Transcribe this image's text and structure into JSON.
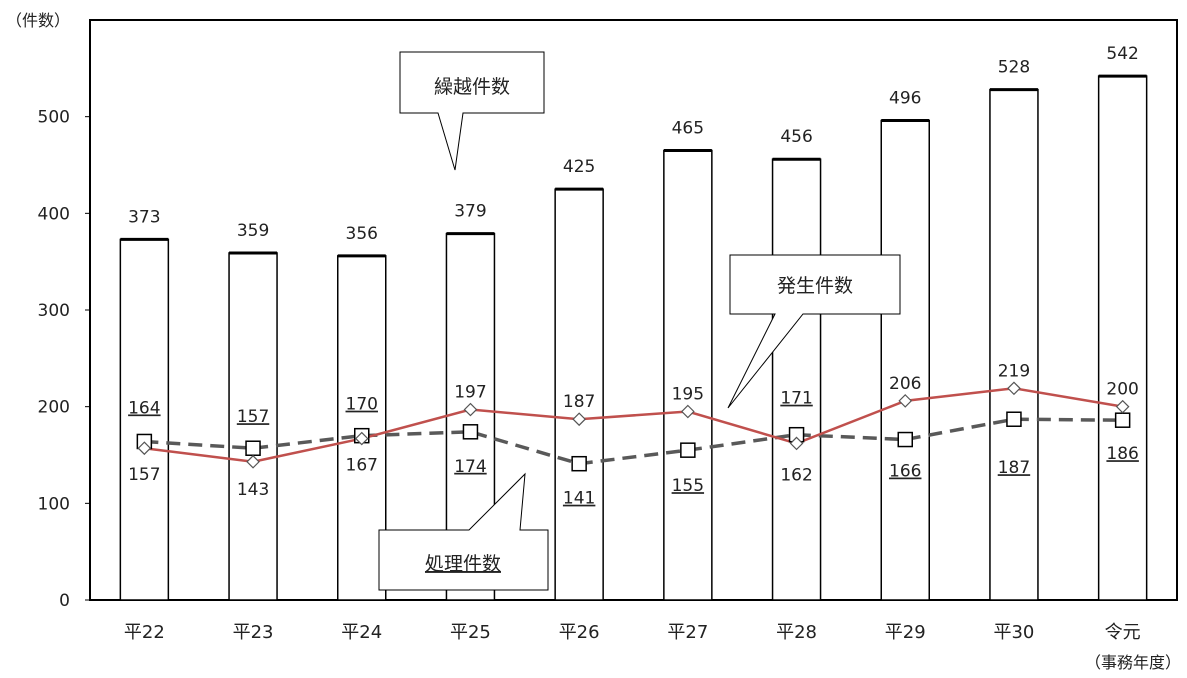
{
  "chart_data": {
    "type": "bar",
    "ylabel": "（件数）",
    "xlabel": "（事務年度）",
    "ylim": [
      0,
      600
    ],
    "yticks": [
      0,
      100,
      200,
      300,
      400,
      500
    ],
    "grid": false,
    "categories": [
      "平22",
      "平23",
      "平24",
      "平25",
      "平26",
      "平27",
      "平28",
      "平29",
      "平30",
      "令元"
    ],
    "series": [
      {
        "name": "繰越件数",
        "kind": "bar",
        "values": [
          373,
          359,
          356,
          379,
          425,
          465,
          456,
          496,
          528,
          542
        ]
      },
      {
        "name": "発生件数",
        "kind": "line",
        "color": "#c0504d",
        "marker": "diamond",
        "values": [
          157,
          143,
          167,
          197,
          187,
          195,
          162,
          206,
          219,
          200
        ]
      },
      {
        "name": "処理件数",
        "kind": "line",
        "color": "#595959",
        "marker": "square",
        "dashed": true,
        "values": [
          164,
          157,
          170,
          174,
          141,
          155,
          171,
          166,
          187,
          186
        ]
      }
    ],
    "callouts": [
      "繰越件数",
      "発生件数",
      "処理件数"
    ]
  }
}
